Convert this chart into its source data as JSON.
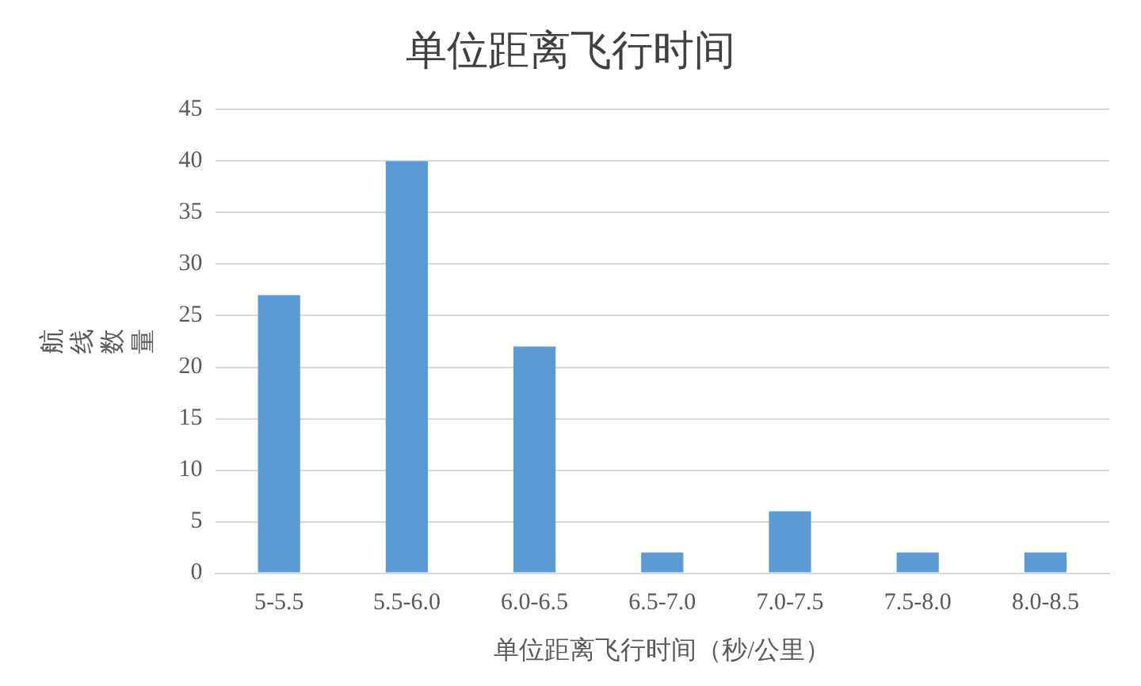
{
  "chart_data": {
    "type": "bar",
    "title": "单位距离飞行时间",
    "xlabel": "单位距离飞行时间（秒/公里）",
    "ylabel": "航线数量",
    "categories": [
      "5-5.5",
      "5.5-6.0",
      "6.0-6.5",
      "6.5-7.0",
      "7.0-7.5",
      "7.5-8.0",
      "8.0-8.5"
    ],
    "values": [
      27,
      40,
      22,
      2,
      6,
      2,
      2
    ],
    "color": "#5b9bd5",
    "ylim": [
      0,
      45
    ],
    "yticks": [
      0,
      5,
      10,
      15,
      20,
      25,
      30,
      35,
      40,
      45
    ],
    "grid": "y",
    "legend": false
  }
}
